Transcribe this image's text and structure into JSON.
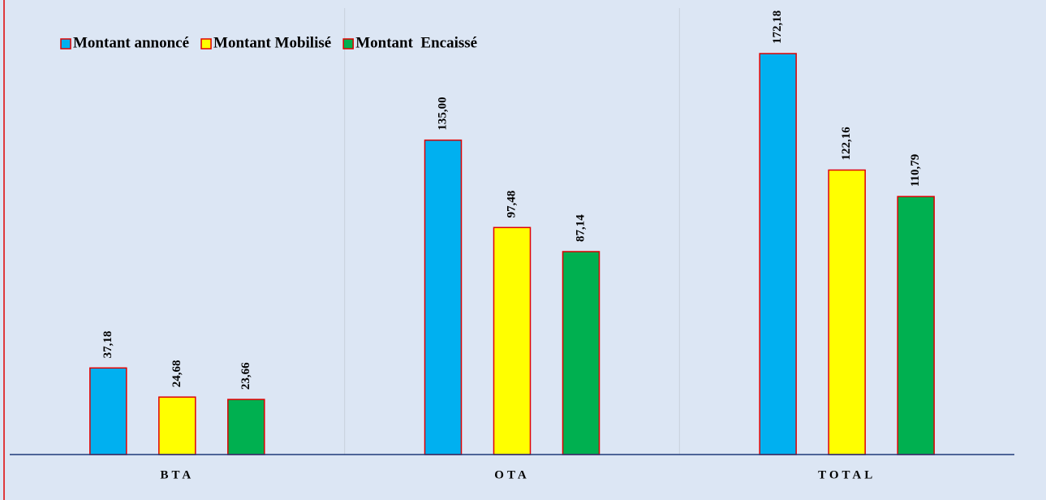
{
  "chart_data": {
    "type": "bar",
    "categories": [
      "BTA",
      "OTA",
      "TOTAL"
    ],
    "series": [
      {
        "name": "Montant annoncé",
        "color": "#00b0f0",
        "values": [
          37.18,
          135.0,
          172.18
        ],
        "value_labels": [
          "37,18",
          "135,00",
          "172,18"
        ]
      },
      {
        "name": "Montant Mobilisé",
        "color": "#ffff00",
        "values": [
          24.68,
          97.48,
          122.16
        ],
        "value_labels": [
          "24,68",
          "97,48",
          "122,16"
        ]
      },
      {
        "name": "Montant  Encaissé",
        "color": "#00b050",
        "values": [
          23.66,
          87.14,
          110.79
        ],
        "value_labels": [
          "23,66",
          "87,14",
          "110,79"
        ]
      }
    ],
    "bar_edge_color": "#e00000",
    "legend": "top-left"
  }
}
